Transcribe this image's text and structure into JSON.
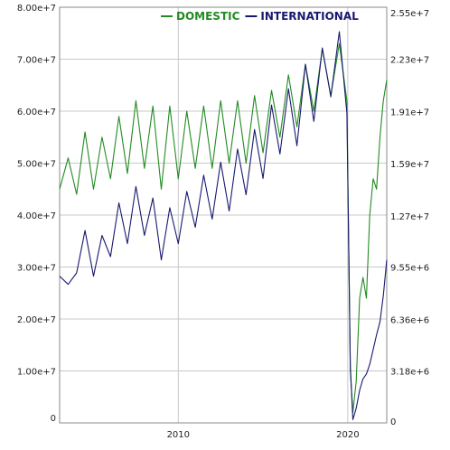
{
  "chart_data": {
    "type": "line",
    "title": "",
    "xlabel": "",
    "ylabel_left": "",
    "ylabel_right": "",
    "legend_placement": "top-center",
    "grid": true,
    "xlim": [
      2003.0,
      2022.3
    ],
    "x_ticks": [
      {
        "value": 2010,
        "label": "2010"
      },
      {
        "value": 2020,
        "label": "2020"
      }
    ],
    "ylim_left": [
      0,
      80000000
    ],
    "y_ticks_left": [
      {
        "value": 0,
        "label": "0"
      },
      {
        "value": 10000000,
        "label": "1.00e+7"
      },
      {
        "value": 20000000,
        "label": "2.00e+7"
      },
      {
        "value": 30000000,
        "label": "3.00e+7"
      },
      {
        "value": 40000000,
        "label": "4.00e+7"
      },
      {
        "value": 50000000,
        "label": "5.00e+7"
      },
      {
        "value": 60000000,
        "label": "6.00e+7"
      },
      {
        "value": 70000000,
        "label": "7.00e+7"
      },
      {
        "value": 80000000,
        "label": "8.00e+7"
      }
    ],
    "ylim_right": [
      0,
      25500000
    ],
    "y_ticks_right": [
      {
        "value": 0,
        "label": "0"
      },
      {
        "value": 3180000,
        "label": "3.18e+6"
      },
      {
        "value": 6360000,
        "label": "6.36e+6"
      },
      {
        "value": 9550000,
        "label": "9.55e+6"
      },
      {
        "value": 12700000,
        "label": "1.27e+7"
      },
      {
        "value": 15900000,
        "label": "1.59e+7"
      },
      {
        "value": 19100000,
        "label": "1.91e+7"
      },
      {
        "value": 22300000,
        "label": "2.23e+7"
      },
      {
        "value": 25500000,
        "label": "2.55e+7"
      }
    ],
    "series": [
      {
        "name": "DOMESTIC",
        "color": "#228b22",
        "axis": "left",
        "points": [
          [
            2003.0,
            45000000
          ],
          [
            2003.5,
            51000000
          ],
          [
            2004.0,
            44000000
          ],
          [
            2004.5,
            56000000
          ],
          [
            2005.0,
            45000000
          ],
          [
            2005.5,
            55000000
          ],
          [
            2006.0,
            47000000
          ],
          [
            2006.5,
            59000000
          ],
          [
            2007.0,
            48000000
          ],
          [
            2007.5,
            62000000
          ],
          [
            2008.0,
            49000000
          ],
          [
            2008.5,
            61000000
          ],
          [
            2009.0,
            45000000
          ],
          [
            2009.5,
            61000000
          ],
          [
            2010.0,
            47000000
          ],
          [
            2010.5,
            60000000
          ],
          [
            2011.0,
            49000000
          ],
          [
            2011.5,
            61000000
          ],
          [
            2012.0,
            49000000
          ],
          [
            2012.5,
            62000000
          ],
          [
            2013.0,
            50000000
          ],
          [
            2013.5,
            62000000
          ],
          [
            2014.0,
            50000000
          ],
          [
            2014.5,
            63000000
          ],
          [
            2015.0,
            52000000
          ],
          [
            2015.5,
            64000000
          ],
          [
            2016.0,
            55000000
          ],
          [
            2016.5,
            67000000
          ],
          [
            2017.0,
            57000000
          ],
          [
            2017.5,
            69000000
          ],
          [
            2018.0,
            60000000
          ],
          [
            2018.5,
            72000000
          ],
          [
            2019.0,
            63000000
          ],
          [
            2019.5,
            73000000
          ],
          [
            2019.95,
            62000000
          ],
          [
            2020.15,
            10000000
          ],
          [
            2020.3,
            2000000
          ],
          [
            2020.5,
            8000000
          ],
          [
            2020.7,
            24000000
          ],
          [
            2020.9,
            28000000
          ],
          [
            2021.1,
            24000000
          ],
          [
            2021.3,
            40000000
          ],
          [
            2021.5,
            47000000
          ],
          [
            2021.7,
            45000000
          ],
          [
            2021.9,
            55000000
          ],
          [
            2022.1,
            62000000
          ],
          [
            2022.3,
            66000000
          ]
        ]
      },
      {
        "name": "INTERNATIONAL",
        "color": "#191970",
        "axis": "right",
        "points": [
          [
            2003.0,
            9000000
          ],
          [
            2003.5,
            8500000
          ],
          [
            2004.0,
            9200000
          ],
          [
            2004.5,
            11800000
          ],
          [
            2005.0,
            9000000
          ],
          [
            2005.5,
            11500000
          ],
          [
            2006.0,
            10200000
          ],
          [
            2006.5,
            13500000
          ],
          [
            2007.0,
            11000000
          ],
          [
            2007.5,
            14500000
          ],
          [
            2008.0,
            11500000
          ],
          [
            2008.5,
            13800000
          ],
          [
            2009.0,
            10000000
          ],
          [
            2009.5,
            13200000
          ],
          [
            2010.0,
            11000000
          ],
          [
            2010.5,
            14200000
          ],
          [
            2011.0,
            12000000
          ],
          [
            2011.5,
            15200000
          ],
          [
            2012.0,
            12500000
          ],
          [
            2012.5,
            16000000
          ],
          [
            2013.0,
            13000000
          ],
          [
            2013.5,
            16800000
          ],
          [
            2014.0,
            14000000
          ],
          [
            2014.5,
            18000000
          ],
          [
            2015.0,
            15000000
          ],
          [
            2015.5,
            19500000
          ],
          [
            2016.0,
            16500000
          ],
          [
            2016.5,
            20500000
          ],
          [
            2017.0,
            17000000
          ],
          [
            2017.5,
            22000000
          ],
          [
            2018.0,
            18500000
          ],
          [
            2018.5,
            23000000
          ],
          [
            2019.0,
            20000000
          ],
          [
            2019.5,
            24000000
          ],
          [
            2019.95,
            19000000
          ],
          [
            2020.15,
            3500000
          ],
          [
            2020.3,
            200000
          ],
          [
            2020.5,
            900000
          ],
          [
            2020.7,
            2000000
          ],
          [
            2020.9,
            2700000
          ],
          [
            2021.1,
            3000000
          ],
          [
            2021.3,
            3600000
          ],
          [
            2021.5,
            4500000
          ],
          [
            2021.7,
            5400000
          ],
          [
            2021.9,
            6200000
          ],
          [
            2022.1,
            7800000
          ],
          [
            2022.3,
            10000000
          ]
        ]
      }
    ]
  }
}
